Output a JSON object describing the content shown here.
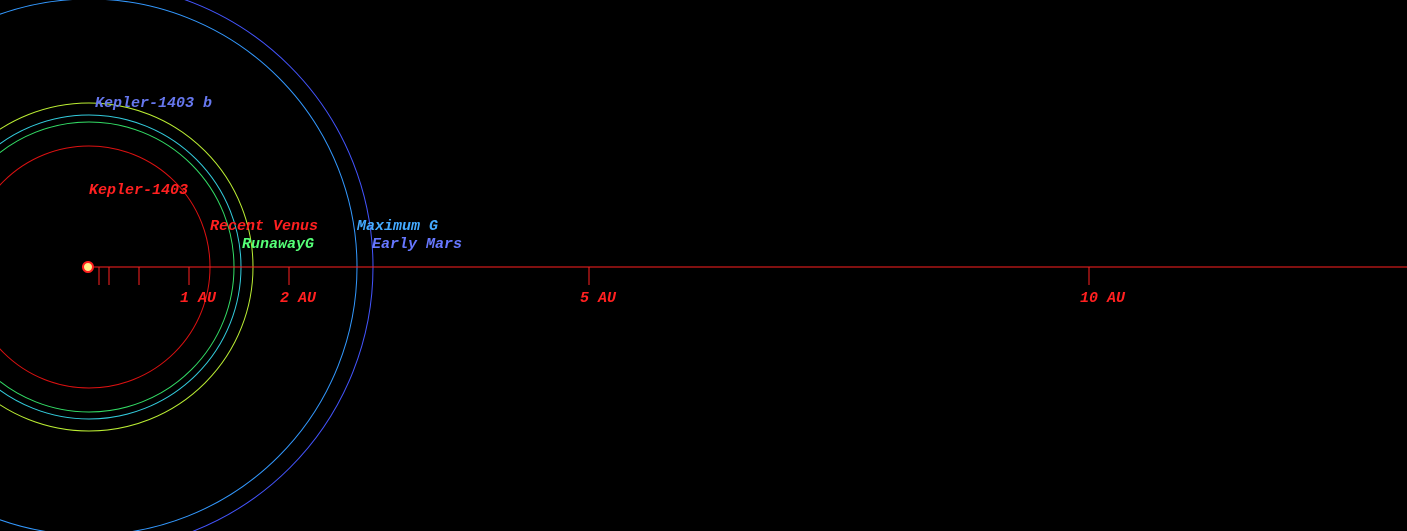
{
  "star": {
    "label": "Kepler-1403",
    "color": "#ff2020"
  },
  "axis": {
    "color": "#ff2020",
    "ticks": [
      {
        "value": 0.1
      },
      {
        "value": 0.2
      },
      {
        "value": 0.5
      },
      {
        "value": 1,
        "label": "1 AU"
      },
      {
        "value": 2,
        "label": "2 AU"
      },
      {
        "value": 5,
        "label": "5 AU"
      },
      {
        "value": 10,
        "label": "10 AU"
      }
    ]
  },
  "orbits": [
    {
      "radius": 1.21,
      "color": "#dd1111",
      "label": "Recent Venus",
      "label_color": "#ff2020"
    },
    {
      "radius": 1.45,
      "color": "#33dd66",
      "label": "RunawayG",
      "label_color": "#55ff77"
    },
    {
      "radius": 1.52,
      "color": "#33ccdd"
    },
    {
      "radius": 1.64,
      "color": "#bbee33",
      "label": "Kepler-1403 b",
      "label_color": "#6677ee"
    },
    {
      "radius": 2.68,
      "color": "#3399ff",
      "label": "Maximum G",
      "label_color": "#44aaff"
    },
    {
      "radius": 2.84,
      "color": "#4455ff",
      "label": "Early Mars",
      "label_color": "#6677ff"
    }
  ]
}
